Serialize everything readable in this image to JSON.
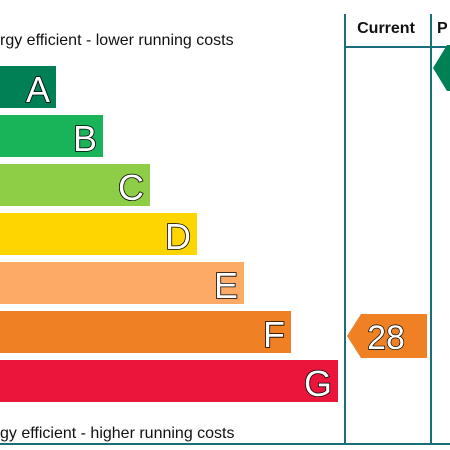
{
  "chart_data": {
    "type": "bar",
    "top_caption": "rgy efficient - lower running costs",
    "bottom_caption": "gy efficient - higher running costs",
    "columns": {
      "current_label": "Current",
      "potential_label": "P"
    },
    "bands": [
      {
        "letter": "A",
        "color": "#008054",
        "order": 1
      },
      {
        "letter": "B",
        "color": "#19b459",
        "order": 2
      },
      {
        "letter": "C",
        "color": "#8dce46",
        "order": 3
      },
      {
        "letter": "D",
        "color": "#ffd500",
        "order": 4
      },
      {
        "letter": "E",
        "color": "#fcaa65",
        "order": 5
      },
      {
        "letter": "F",
        "color": "#ef8023",
        "order": 6
      },
      {
        "letter": "G",
        "color": "#e9153b",
        "order": 7
      }
    ],
    "current_rating": {
      "value": "28",
      "band": "F",
      "color": "#ef8023"
    },
    "potential_rating": {
      "value": "",
      "band": "A",
      "color": "#008054"
    },
    "frame_color": "#1a6e7a"
  }
}
